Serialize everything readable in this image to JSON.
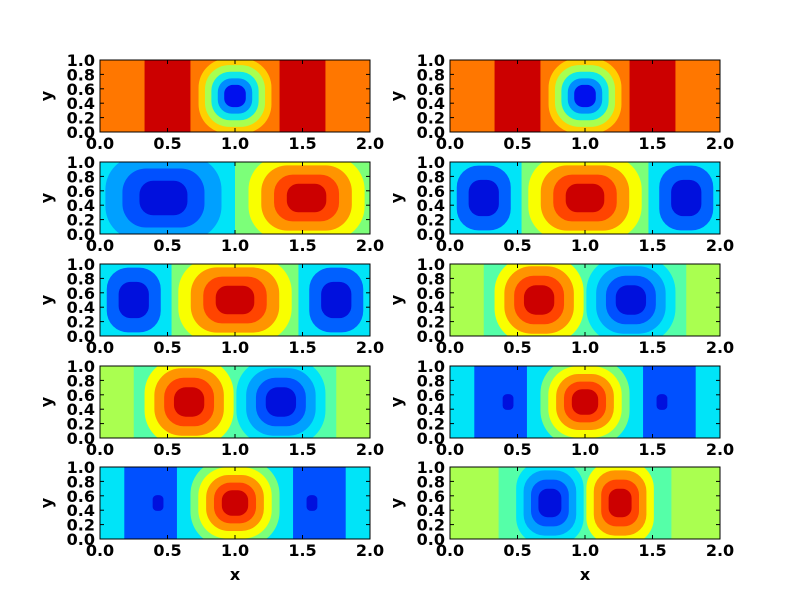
{
  "chart_data": {
    "type": "heatmap",
    "layout": {
      "rows": 5,
      "cols": 2
    },
    "xlim": [
      0.0,
      2.0
    ],
    "ylim": [
      0.0,
      1.0
    ],
    "xticks": [
      "0.0",
      "0.5",
      "1.0",
      "1.5",
      "2.0"
    ],
    "yticks": [
      "0.0",
      "0.2",
      "0.4",
      "0.6",
      "0.8",
      "1.0"
    ],
    "xlabel": "x",
    "ylabel": "y",
    "colormap": [
      "#00007f",
      "#0000ff",
      "#007fff",
      "#00e4f8",
      "#7cff79",
      "#f9ff00",
      "#ff9400",
      "#ff1300",
      "#7f0000"
    ],
    "panels": [
      {
        "name": "panel-r1c1",
        "bg": "#ff7700",
        "bands": [
          {
            "x0": 0.33,
            "x1": 0.67,
            "color": "#cc0000"
          },
          {
            "x0": 1.33,
            "x1": 1.67,
            "color": "#cc0000"
          }
        ],
        "blobs": [
          {
            "cx": 1.0,
            "cy": 0.5,
            "rx": 0.27,
            "ry": 0.52,
            "levels": [
              "#ffd000",
              "#a8ff50",
              "#10e8e8",
              "#008cff",
              "#0010ee"
            ]
          }
        ]
      },
      {
        "name": "panel-r1c2",
        "bg": "#ff7700",
        "bands": [
          {
            "x0": 0.33,
            "x1": 0.67,
            "color": "#cc0000"
          },
          {
            "x0": 1.33,
            "x1": 1.67,
            "color": "#cc0000"
          }
        ],
        "blobs": [
          {
            "cx": 1.0,
            "cy": 0.5,
            "rx": 0.27,
            "ry": 0.52,
            "levels": [
              "#ffd000",
              "#a8ff50",
              "#10e8e8",
              "#008cff",
              "#0010ee"
            ]
          }
        ]
      },
      {
        "name": "panel-r2c1",
        "bg": "#00e4f8",
        "bands": [
          {
            "x0": 1.0,
            "x1": 2.0,
            "color": "#7cff79"
          }
        ],
        "blobs": [
          {
            "cx": 0.47,
            "cy": 0.5,
            "rx": 0.43,
            "ry": 0.58,
            "levels": [
              "#00a0ff",
              "#0050ff",
              "#0010dd"
            ]
          },
          {
            "cx": 1.53,
            "cy": 0.5,
            "rx": 0.43,
            "ry": 0.58,
            "levels": [
              "#f9ff00",
              "#ff9400",
              "#ff4400",
              "#cc0000"
            ]
          }
        ]
      },
      {
        "name": "panel-r2c2",
        "bg": "#00e4f8",
        "bands": [
          {
            "x0": 0.53,
            "x1": 1.47,
            "color": "#7cff79"
          }
        ],
        "blobs": [
          {
            "cx": 0.25,
            "cy": 0.5,
            "rx": 0.2,
            "ry": 0.45,
            "levels": [
              "#0060ff",
              "#0010dd"
            ]
          },
          {
            "cx": 1.0,
            "cy": 0.5,
            "rx": 0.42,
            "ry": 0.58,
            "levels": [
              "#f9ff00",
              "#ff9400",
              "#ff4400",
              "#cc0000"
            ]
          },
          {
            "cx": 1.75,
            "cy": 0.5,
            "rx": 0.2,
            "ry": 0.45,
            "levels": [
              "#0060ff",
              "#0010dd"
            ]
          }
        ]
      },
      {
        "name": "panel-r3c1",
        "bg": "#00e4f8",
        "bands": [
          {
            "x0": 0.53,
            "x1": 1.47,
            "color": "#7cff79"
          }
        ],
        "blobs": [
          {
            "cx": 0.25,
            "cy": 0.5,
            "rx": 0.2,
            "ry": 0.45,
            "levels": [
              "#0060ff",
              "#0010dd"
            ]
          },
          {
            "cx": 1.0,
            "cy": 0.5,
            "rx": 0.42,
            "ry": 0.58,
            "levels": [
              "#f9ff00",
              "#ff9400",
              "#ff4400",
              "#cc0000"
            ]
          },
          {
            "cx": 1.75,
            "cy": 0.5,
            "rx": 0.2,
            "ry": 0.45,
            "levels": [
              "#0060ff",
              "#0010dd"
            ]
          }
        ]
      },
      {
        "name": "panel-r3c2",
        "bg": "#aaff50",
        "bands": [
          {
            "x0": 0.25,
            "x1": 1.75,
            "color": "#55ffa8"
          }
        ],
        "blobs": [
          {
            "cx": 0.66,
            "cy": 0.5,
            "rx": 0.33,
            "ry": 0.6,
            "levels": [
              "#f9ff00",
              "#ff9400",
              "#ff4400",
              "#cc0000"
            ]
          },
          {
            "cx": 1.34,
            "cy": 0.5,
            "rx": 0.33,
            "ry": 0.6,
            "levels": [
              "#00e4f8",
              "#00a0ff",
              "#0050ff",
              "#0010dd"
            ]
          }
        ]
      },
      {
        "name": "panel-r4c1",
        "bg": "#aaff50",
        "bands": [
          {
            "x0": 0.25,
            "x1": 1.75,
            "color": "#55ffa8"
          }
        ],
        "blobs": [
          {
            "cx": 0.66,
            "cy": 0.5,
            "rx": 0.33,
            "ry": 0.6,
            "levels": [
              "#f9ff00",
              "#ff9400",
              "#ff4400",
              "#cc0000"
            ]
          },
          {
            "cx": 1.34,
            "cy": 0.5,
            "rx": 0.33,
            "ry": 0.6,
            "levels": [
              "#00e4f8",
              "#00a0ff",
              "#0050ff",
              "#0010dd"
            ]
          }
        ]
      },
      {
        "name": "panel-r4c2",
        "bg": "#00e4f8",
        "bands": [
          {
            "x0": 0.18,
            "x1": 0.57,
            "color": "#0050ff"
          },
          {
            "x0": 1.43,
            "x1": 1.82,
            "color": "#0050ff"
          }
        ],
        "blobs": [
          {
            "cx": 0.43,
            "cy": 0.5,
            "rx": 0.04,
            "ry": 0.11,
            "levels": [
              "#0010dd"
            ]
          },
          {
            "cx": 1.0,
            "cy": 0.5,
            "rx": 0.33,
            "ry": 0.6,
            "levels": [
              "#7cff79",
              "#f9ff00",
              "#ff9400",
              "#ff4400",
              "#cc0000"
            ]
          },
          {
            "cx": 1.57,
            "cy": 0.5,
            "rx": 0.04,
            "ry": 0.11,
            "levels": [
              "#0010dd"
            ]
          }
        ]
      },
      {
        "name": "panel-r5c1",
        "bg": "#00e4f8",
        "bands": [
          {
            "x0": 0.18,
            "x1": 0.57,
            "color": "#0050ff"
          },
          {
            "x0": 1.43,
            "x1": 1.82,
            "color": "#0050ff"
          }
        ],
        "blobs": [
          {
            "cx": 0.43,
            "cy": 0.5,
            "rx": 0.04,
            "ry": 0.11,
            "levels": [
              "#0010dd"
            ]
          },
          {
            "cx": 1.0,
            "cy": 0.5,
            "rx": 0.33,
            "ry": 0.6,
            "levels": [
              "#7cff79",
              "#f9ff00",
              "#ff9400",
              "#ff4400",
              "#cc0000"
            ]
          },
          {
            "cx": 1.57,
            "cy": 0.5,
            "rx": 0.04,
            "ry": 0.11,
            "levels": [
              "#0010dd"
            ]
          }
        ]
      },
      {
        "name": "panel-r5c2",
        "bg": "#aaff50",
        "bands": [
          {
            "x0": 0.36,
            "x1": 1.64,
            "color": "#55ffa8"
          }
        ],
        "blobs": [
          {
            "cx": 0.74,
            "cy": 0.5,
            "rx": 0.25,
            "ry": 0.58,
            "levels": [
              "#00e4f8",
              "#00a0ff",
              "#0050ff",
              "#0010dd"
            ]
          },
          {
            "cx": 1.26,
            "cy": 0.5,
            "rx": 0.25,
            "ry": 0.58,
            "levels": [
              "#f9ff00",
              "#ff9400",
              "#ff4400",
              "#cc0000"
            ]
          }
        ]
      }
    ]
  }
}
